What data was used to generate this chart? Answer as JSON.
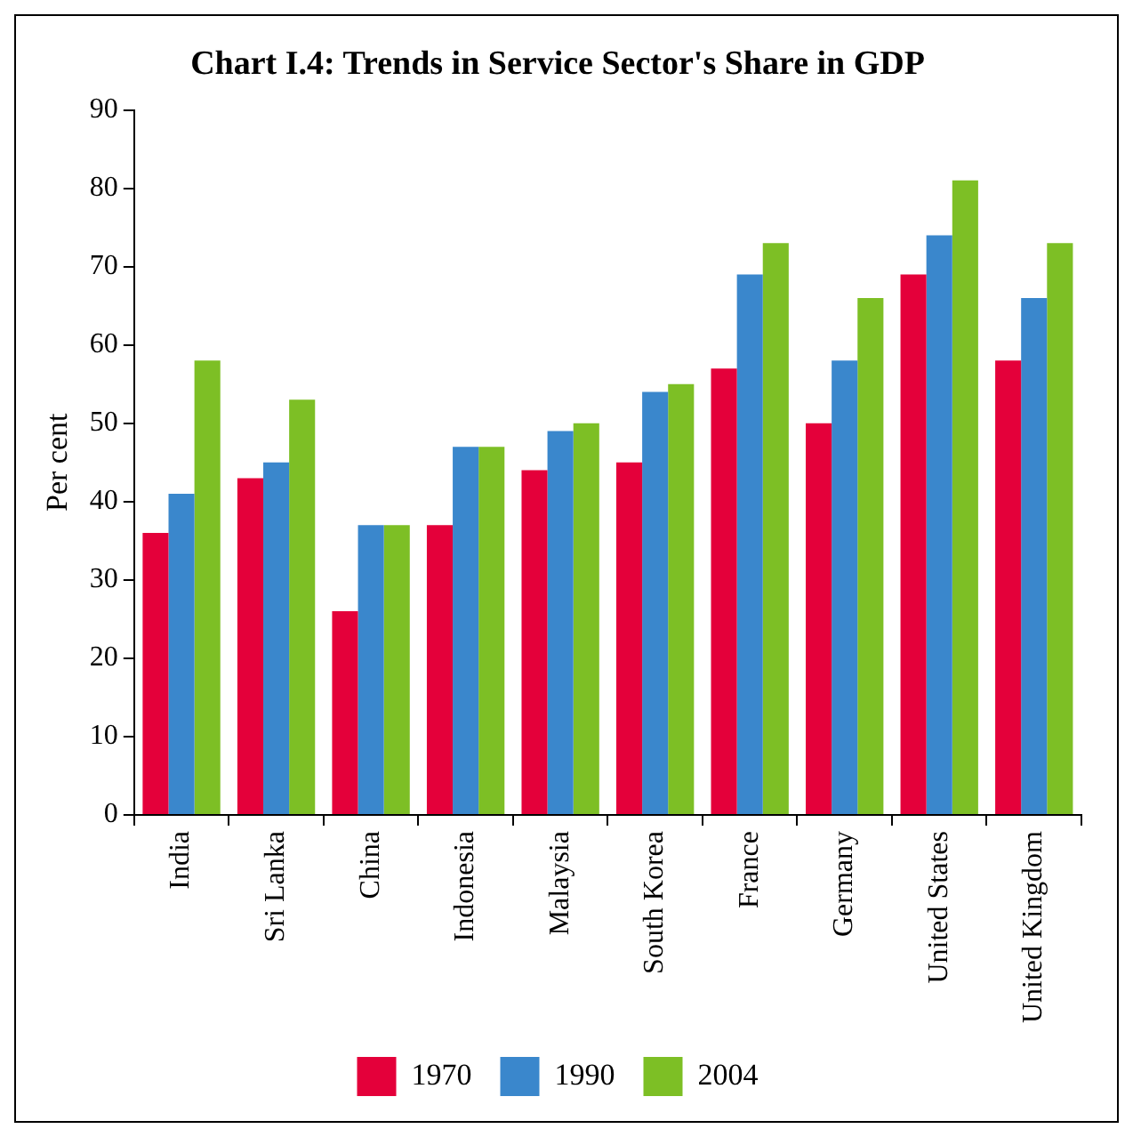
{
  "chart_data": {
    "type": "bar",
    "title": "Chart I.4: Trends in Service Sector's Share in GDP",
    "ylabel": "Per cent",
    "categories": [
      "India",
      "Sri Lanka",
      "China",
      "Indonesia",
      "Malaysia",
      "South Korea",
      "France",
      "Germany",
      "United States",
      "United Kingdom"
    ],
    "series": [
      {
        "name": "1970",
        "color": "#e4003a",
        "values": [
          36,
          43,
          26,
          37,
          44,
          45,
          57,
          50,
          69,
          58
        ]
      },
      {
        "name": "1990",
        "color": "#3a87cc",
        "values": [
          41,
          45,
          37,
          47,
          49,
          54,
          69,
          58,
          74,
          66
        ]
      },
      {
        "name": "2004",
        "color": "#7dbf25",
        "values": [
          58,
          53,
          37,
          47,
          50,
          55,
          73,
          66,
          81,
          73
        ]
      }
    ],
    "ylim": [
      0,
      90
    ],
    "yticks": [
      0,
      10,
      20,
      30,
      40,
      50,
      60,
      70,
      80,
      90
    ],
    "grid": false,
    "legend": "bottom"
  }
}
